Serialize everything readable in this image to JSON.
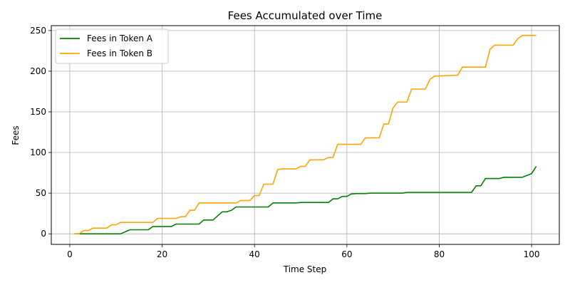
{
  "chart_data": {
    "type": "line",
    "title": "Fees Accumulated over Time",
    "xlabel": "Time Step",
    "ylabel": "Fees",
    "xlim": [
      -4,
      106
    ],
    "ylim": [
      -13,
      256
    ],
    "xticks": [
      0,
      20,
      40,
      60,
      80,
      100
    ],
    "yticks": [
      0,
      50,
      100,
      150,
      200,
      250
    ],
    "grid": true,
    "legend_position": "top-left",
    "series": [
      {
        "name": "Fees in Token A",
        "color": "#008000",
        "points": [
          [
            1,
            0
          ],
          [
            10,
            0
          ],
          [
            11,
            0
          ],
          [
            13,
            5
          ],
          [
            17,
            5
          ],
          [
            18,
            9
          ],
          [
            22,
            9
          ],
          [
            23,
            12
          ],
          [
            28,
            12
          ],
          [
            29,
            17
          ],
          [
            31,
            17
          ],
          [
            33,
            27
          ],
          [
            34,
            27
          ],
          [
            35,
            29
          ],
          [
            36,
            33
          ],
          [
            43,
            33
          ],
          [
            44,
            38
          ],
          [
            49,
            38
          ],
          [
            50,
            38.5
          ],
          [
            56,
            38.5
          ],
          [
            57,
            43
          ],
          [
            58,
            43
          ],
          [
            59,
            46
          ],
          [
            60,
            46
          ],
          [
            61,
            49
          ],
          [
            62,
            49.5
          ],
          [
            64,
            49.5
          ],
          [
            65,
            50
          ],
          [
            72,
            50
          ],
          [
            73,
            51
          ],
          [
            87,
            51
          ],
          [
            88,
            59
          ],
          [
            89,
            59
          ],
          [
            90,
            68
          ],
          [
            93,
            68
          ],
          [
            94,
            69.5
          ],
          [
            98,
            69.5
          ],
          [
            100,
            74
          ],
          [
            101,
            83
          ]
        ]
      },
      {
        "name": "Fees in Token B",
        "color": "#ffa500",
        "points": [
          [
            1,
            0
          ],
          [
            2,
            0
          ],
          [
            3,
            4
          ],
          [
            4,
            4
          ],
          [
            5,
            7
          ],
          [
            8,
            7
          ],
          [
            9,
            11
          ],
          [
            10,
            11
          ],
          [
            11,
            14
          ],
          [
            18,
            14
          ],
          [
            19,
            19
          ],
          [
            23,
            19
          ],
          [
            24,
            21
          ],
          [
            25,
            21
          ],
          [
            26,
            29
          ],
          [
            27,
            29
          ],
          [
            28,
            38
          ],
          [
            36,
            38
          ],
          [
            37,
            41
          ],
          [
            39,
            41
          ],
          [
            40,
            47
          ],
          [
            41,
            47
          ],
          [
            42,
            61
          ],
          [
            44,
            61
          ],
          [
            45,
            79
          ],
          [
            46,
            80
          ],
          [
            49,
            80
          ],
          [
            50,
            83
          ],
          [
            51,
            83
          ],
          [
            52,
            91
          ],
          [
            55,
            91
          ],
          [
            56,
            94
          ],
          [
            57,
            94
          ],
          [
            58,
            110
          ],
          [
            63,
            110
          ],
          [
            64,
            118
          ],
          [
            67,
            118
          ],
          [
            68,
            135
          ],
          [
            69,
            135
          ],
          [
            70,
            155
          ],
          [
            71,
            162
          ],
          [
            73,
            162
          ],
          [
            74,
            178
          ],
          [
            77,
            178
          ],
          [
            78,
            190
          ],
          [
            79,
            194
          ],
          [
            84,
            195
          ],
          [
            85,
            205
          ],
          [
            90,
            205
          ],
          [
            91,
            227
          ],
          [
            92,
            232
          ],
          [
            96,
            232
          ],
          [
            97,
            240
          ],
          [
            98,
            244
          ],
          [
            101,
            244
          ]
        ]
      }
    ]
  }
}
